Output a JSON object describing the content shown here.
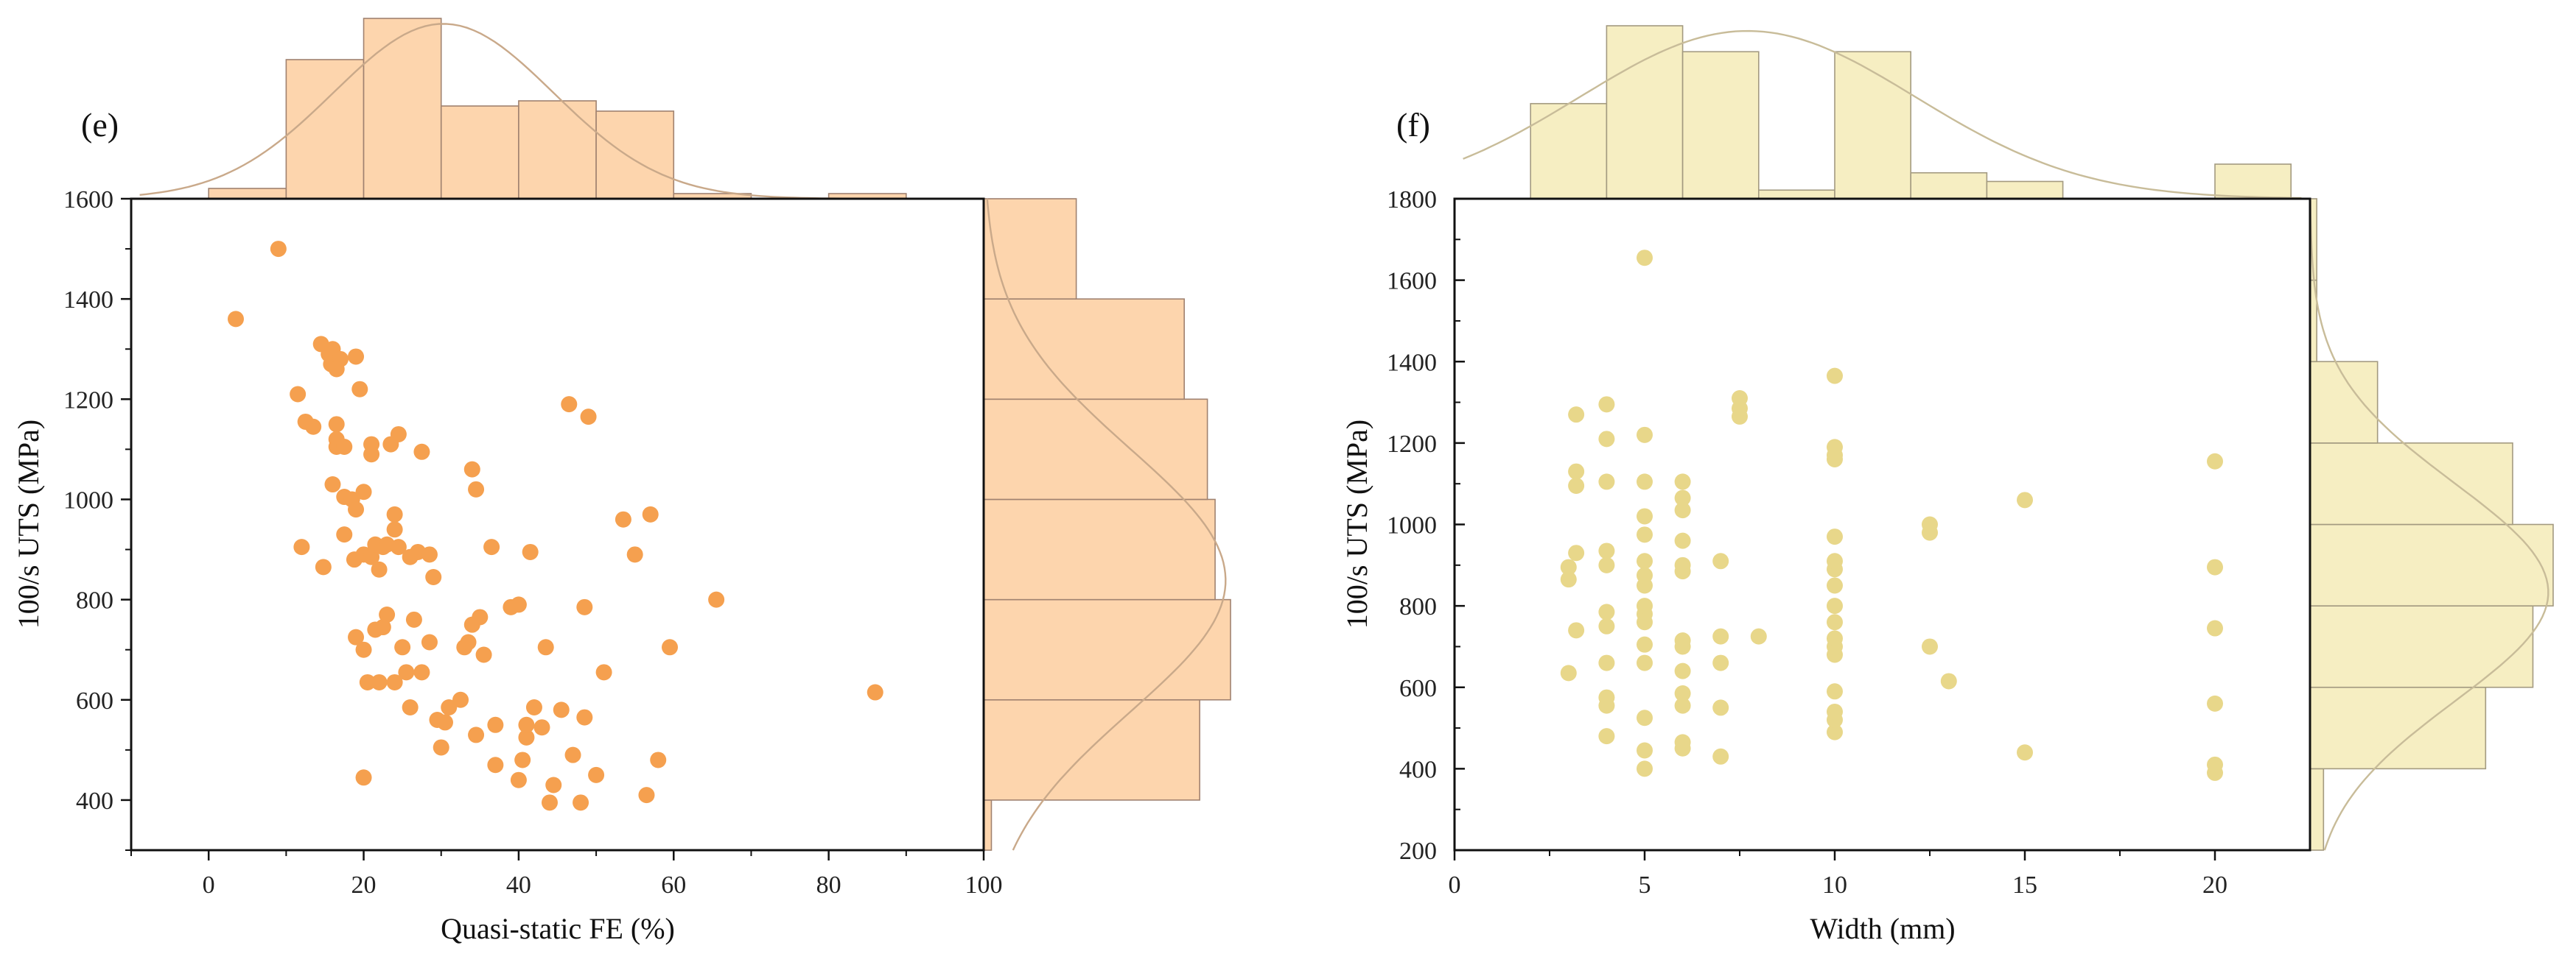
{
  "chart_data": [
    {
      "type": "scatter",
      "panel_label": "(e)",
      "xlabel": "Quasi-static FE (%)",
      "ylabel": "100/s UTS (MPa)",
      "xlim": [
        -10,
        100
      ],
      "ylim": [
        300,
        1600
      ],
      "xticks": [
        0,
        20,
        40,
        60,
        80,
        100
      ],
      "xtick_labels": [
        "0",
        "20",
        "40",
        "60",
        "80",
        "100"
      ],
      "yticks": [
        400,
        600,
        800,
        1000,
        1200,
        1400,
        1600
      ],
      "ytick_labels": [
        "400",
        "600",
        "800",
        "1000",
        "1200",
        "1400",
        "1600"
      ],
      "colors": {
        "point": "#f5a04f",
        "hist_fill": "#fdd5ad",
        "hist_edge": "#a08270",
        "kde": "#c9a98a"
      },
      "points": [
        [
          3.5,
          1360
        ],
        [
          9,
          1500
        ],
        [
          11.5,
          1210
        ],
        [
          12.5,
          1155
        ],
        [
          13.5,
          1145
        ],
        [
          14.5,
          1310
        ],
        [
          15.5,
          1290
        ],
        [
          16,
          1300
        ],
        [
          15.8,
          1270
        ],
        [
          17,
          1280
        ],
        [
          16.5,
          1260
        ],
        [
          19,
          1285
        ],
        [
          19.5,
          1220
        ],
        [
          16.5,
          1150
        ],
        [
          16.5,
          1120
        ],
        [
          16.5,
          1105
        ],
        [
          17.5,
          1105
        ],
        [
          21,
          1110
        ],
        [
          21,
          1090
        ],
        [
          23.5,
          1110
        ],
        [
          24.5,
          1130
        ],
        [
          27.5,
          1095
        ],
        [
          12,
          905
        ],
        [
          14.8,
          865
        ],
        [
          16,
          1030
        ],
        [
          17.5,
          1005
        ],
        [
          18.5,
          1000
        ],
        [
          20,
          1015
        ],
        [
          17.5,
          930
        ],
        [
          19,
          980
        ],
        [
          18.8,
          880
        ],
        [
          20,
          890
        ],
        [
          21,
          885
        ],
        [
          21.5,
          910
        ],
        [
          22,
          860
        ],
        [
          22.5,
          905
        ],
        [
          23,
          910
        ],
        [
          24,
          940
        ],
        [
          24,
          970
        ],
        [
          24.5,
          905
        ],
        [
          26,
          885
        ],
        [
          27,
          895
        ],
        [
          28.5,
          890
        ],
        [
          29,
          845
        ],
        [
          19,
          725
        ],
        [
          20,
          700
        ],
        [
          20.5,
          635
        ],
        [
          21.5,
          740
        ],
        [
          22,
          635
        ],
        [
          22.5,
          745
        ],
        [
          23,
          770
        ],
        [
          24,
          635
        ],
        [
          25,
          705
        ],
        [
          25.5,
          655
        ],
        [
          26,
          585
        ],
        [
          26.5,
          760
        ],
        [
          27.5,
          655
        ],
        [
          28.5,
          715
        ],
        [
          29.5,
          560
        ],
        [
          30,
          505
        ],
        [
          30.5,
          555
        ],
        [
          31,
          585
        ],
        [
          32.5,
          600
        ],
        [
          33,
          705
        ],
        [
          33.5,
          715
        ],
        [
          34,
          750
        ],
        [
          34.5,
          530
        ],
        [
          34,
          1060
        ],
        [
          34.5,
          1020
        ],
        [
          35,
          765
        ],
        [
          35.5,
          690
        ],
        [
          36.5,
          905
        ],
        [
          37,
          470
        ],
        [
          37,
          550
        ],
        [
          39,
          785
        ],
        [
          40,
          790
        ],
        [
          40,
          440
        ],
        [
          40.5,
          480
        ],
        [
          41,
          525
        ],
        [
          41,
          550
        ],
        [
          41.5,
          895
        ],
        [
          42,
          585
        ],
        [
          43,
          545
        ],
        [
          43.5,
          705
        ],
        [
          44,
          395
        ],
        [
          44.5,
          430
        ],
        [
          45.5,
          580
        ],
        [
          46.5,
          1190
        ],
        [
          47,
          490
        ],
        [
          48,
          395
        ],
        [
          48.5,
          565
        ],
        [
          48.5,
          785
        ],
        [
          49,
          1165
        ],
        [
          50,
          450
        ],
        [
          51,
          655
        ],
        [
          53.5,
          960
        ],
        [
          55,
          890
        ],
        [
          56.5,
          410
        ],
        [
          57,
          970
        ],
        [
          58,
          480
        ],
        [
          59.5,
          705
        ],
        [
          65.5,
          800
        ],
        [
          86,
          615
        ],
        [
          20,
          445
        ]
      ],
      "top_histogram": {
        "bin_edges": [
          0,
          10,
          20,
          30,
          40,
          50,
          60,
          70,
          80,
          90
        ],
        "counts": [
          2,
          27,
          35,
          18,
          19,
          17,
          1,
          0,
          1
        ]
      },
      "right_histogram": {
        "bin_edges": [
          300,
          400,
          600,
          800,
          1000,
          1200,
          1400,
          1600
        ],
        "counts": [
          1,
          28,
          32,
          30,
          29,
          26,
          12
        ]
      }
    },
    {
      "type": "scatter",
      "panel_label": "(f)",
      "xlabel": "Width (mm)",
      "ylabel": "100/s UTS (MPa)",
      "xlim": [
        0,
        22.5
      ],
      "ylim": [
        200,
        1800
      ],
      "xticks": [
        0,
        5,
        10,
        15,
        20
      ],
      "xtick_labels": [
        "0",
        "5",
        "10",
        "15",
        "20"
      ],
      "yticks": [
        200,
        400,
        600,
        800,
        1000,
        1200,
        1400,
        1600,
        1800
      ],
      "ytick_labels": [
        "200",
        "400",
        "600",
        "800",
        "1000",
        "1200",
        "1400",
        "1600",
        "1800"
      ],
      "colors": {
        "point": "#e8d78a",
        "hist_fill": "#f6eec2",
        "hist_edge": "#a39a80",
        "kde": "#c8bc99"
      },
      "points": [
        [
          3,
          635
        ],
        [
          3,
          865
        ],
        [
          3,
          895
        ],
        [
          3.2,
          740
        ],
        [
          3.2,
          930
        ],
        [
          3.2,
          1095
        ],
        [
          3.2,
          1130
        ],
        [
          3.2,
          1270
        ],
        [
          4,
          480
        ],
        [
          4,
          555
        ],
        [
          4,
          575
        ],
        [
          4,
          660
        ],
        [
          4,
          750
        ],
        [
          4,
          785
        ],
        [
          4,
          900
        ],
        [
          4,
          935
        ],
        [
          4,
          1105
        ],
        [
          4,
          1210
        ],
        [
          4,
          1295
        ],
        [
          5,
          400
        ],
        [
          5,
          445
        ],
        [
          5,
          525
        ],
        [
          5,
          660
        ],
        [
          5,
          705
        ],
        [
          5,
          760
        ],
        [
          5,
          780
        ],
        [
          5,
          800
        ],
        [
          5,
          850
        ],
        [
          5,
          875
        ],
        [
          5,
          910
        ],
        [
          5,
          975
        ],
        [
          5,
          1020
        ],
        [
          5,
          1105
        ],
        [
          5,
          1220
        ],
        [
          5,
          1655
        ],
        [
          6,
          450
        ],
        [
          6,
          465
        ],
        [
          6,
          555
        ],
        [
          6,
          585
        ],
        [
          6,
          640
        ],
        [
          6,
          700
        ],
        [
          6,
          715
        ],
        [
          6,
          885
        ],
        [
          6,
          900
        ],
        [
          6,
          960
        ],
        [
          6,
          1035
        ],
        [
          6,
          1065
        ],
        [
          6,
          1105
        ],
        [
          7,
          430
        ],
        [
          7,
          550
        ],
        [
          7,
          660
        ],
        [
          7,
          725
        ],
        [
          7,
          910
        ],
        [
          7.5,
          1265
        ],
        [
          7.5,
          1285
        ],
        [
          7.5,
          1310
        ],
        [
          8,
          725
        ],
        [
          10,
          490
        ],
        [
          10,
          520
        ],
        [
          10,
          540
        ],
        [
          10,
          590
        ],
        [
          10,
          680
        ],
        [
          10,
          700
        ],
        [
          10,
          720
        ],
        [
          10,
          760
        ],
        [
          10,
          800
        ],
        [
          10,
          850
        ],
        [
          10,
          890
        ],
        [
          10,
          910
        ],
        [
          10,
          970
        ],
        [
          10,
          1160
        ],
        [
          10,
          1170
        ],
        [
          10,
          1190
        ],
        [
          10,
          1365
        ],
        [
          12.5,
          700
        ],
        [
          12.5,
          980
        ],
        [
          12.5,
          1000
        ],
        [
          13,
          615
        ],
        [
          15,
          440
        ],
        [
          15,
          1060
        ],
        [
          20,
          390
        ],
        [
          20,
          410
        ],
        [
          20,
          560
        ],
        [
          20,
          745
        ],
        [
          20,
          895
        ],
        [
          20,
          1155
        ]
      ],
      "top_histogram": {
        "bin_edges": [
          2,
          4,
          6,
          8,
          10,
          12,
          14,
          16,
          18,
          20,
          22
        ],
        "counts": [
          11,
          20,
          17,
          1,
          17,
          3,
          2,
          0,
          0,
          4
        ]
      },
      "right_histogram": {
        "bin_edges": [
          200,
          400,
          600,
          800,
          1000,
          1200,
          1400,
          1600,
          1800
        ],
        "counts": [
          2,
          26,
          33,
          36,
          30,
          10,
          1,
          1
        ]
      }
    }
  ]
}
